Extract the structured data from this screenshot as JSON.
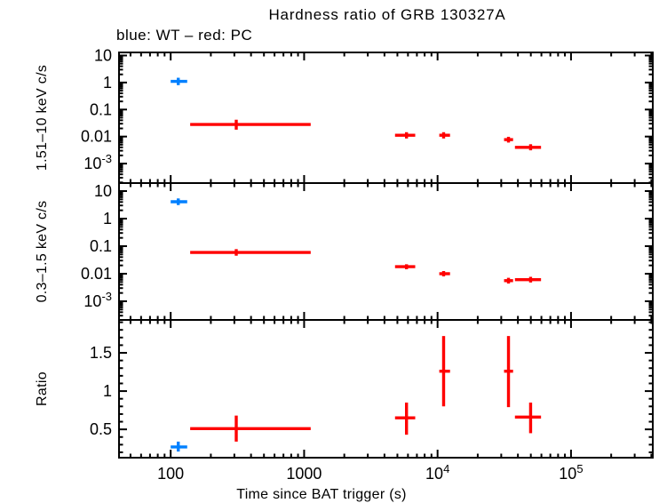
{
  "chart_data": {
    "type": "scatter",
    "title": "Hardness ratio of GRB 130327A",
    "subtitle": "blue: WT – red: PC",
    "xlabel": "Time since BAT trigger (s)",
    "legend": {
      "position": "top-left-above-plot",
      "entries": [
        "WT",
        "PC"
      ]
    },
    "x_axis": {
      "scale": "log",
      "range": [
        41,
        410000
      ],
      "major_ticks": [
        100,
        1000,
        10000,
        100000
      ],
      "tick_labels": [
        "100",
        "1000",
        "10^4",
        "10^5"
      ]
    },
    "panels": [
      {
        "key": "hard",
        "ylabel": "1.51–10 keV c/s",
        "scale": "log",
        "range": [
          0.00019,
          13
        ],
        "major_ticks": [
          10,
          1,
          0.1,
          0.01,
          0.001
        ],
        "tick_labels": [
          "10",
          "1",
          "0.1",
          "0.01",
          "10^-3"
        ]
      },
      {
        "key": "soft",
        "ylabel": "0.3–1.5 keV c/s",
        "scale": "log",
        "range": [
          0.00021,
          19.5
        ],
        "major_ticks": [
          10,
          1,
          0.1,
          0.01,
          0.001
        ],
        "tick_labels": [
          "10",
          "1",
          "0.1",
          "0.01",
          "10^-3"
        ]
      },
      {
        "key": "ratio",
        "ylabel": "Ratio",
        "scale": "linear",
        "range": [
          0.13,
          1.93
        ],
        "major_ticks": [
          0.5,
          1.0,
          1.5
        ],
        "tick_labels": [
          "0.5",
          "1",
          "1.5"
        ],
        "minor_step": 0.1
      }
    ],
    "series": [
      {
        "name": "WT",
        "color": "#0080ff",
        "points": [
          {
            "t": 114,
            "t_lo": 100,
            "t_hi": 133,
            "hard": {
              "y": 1.1,
              "y_lo": 0.8,
              "y_hi": 1.5
            },
            "soft": {
              "y": 4.1,
              "y_lo": 3.1,
              "y_hi": 5.4
            },
            "ratio": {
              "y": 0.27,
              "y_lo": 0.21,
              "y_hi": 0.34
            }
          }
        ]
      },
      {
        "name": "PC",
        "color": "#ff0000",
        "points": [
          {
            "t": 310,
            "t_lo": 140,
            "t_hi": 1120,
            "hard": {
              "y": 0.028,
              "y_lo": 0.018,
              "y_hi": 0.042
            },
            "soft": {
              "y": 0.059,
              "y_lo": 0.045,
              "y_hi": 0.078
            },
            "ratio": {
              "y": 0.51,
              "y_lo": 0.34,
              "y_hi": 0.68
            }
          },
          {
            "t": 5850,
            "t_lo": 4800,
            "t_hi": 6800,
            "hard": {
              "y": 0.0112,
              "y_lo": 0.0085,
              "y_hi": 0.0145
            },
            "soft": {
              "y": 0.018,
              "y_lo": 0.0145,
              "y_hi": 0.022
            },
            "ratio": {
              "y": 0.65,
              "y_lo": 0.43,
              "y_hi": 0.85
            }
          },
          {
            "t": 11100,
            "t_lo": 10300,
            "t_hi": 12400,
            "hard": {
              "y": 0.0112,
              "y_lo": 0.0085,
              "y_hi": 0.0145
            },
            "soft": {
              "y": 0.01,
              "y_lo": 0.008,
              "y_hi": 0.0125
            },
            "ratio": {
              "y": 1.26,
              "y_lo": 0.8,
              "y_hi": 1.72
            }
          },
          {
            "t": 34000,
            "t_lo": 31500,
            "t_hi": 36800,
            "hard": {
              "y": 0.0077,
              "y_lo": 0.006,
              "y_hi": 0.0098
            },
            "soft": {
              "y": 0.0056,
              "y_lo": 0.0044,
              "y_hi": 0.0071
            },
            "ratio": {
              "y": 1.26,
              "y_lo": 0.79,
              "y_hi": 1.72
            }
          },
          {
            "t": 49800,
            "t_lo": 38000,
            "t_hi": 59600,
            "hard": {
              "y": 0.004,
              "y_lo": 0.0031,
              "y_hi": 0.0052
            },
            "soft": {
              "y": 0.0061,
              "y_lo": 0.0048,
              "y_hi": 0.0077
            },
            "ratio": {
              "y": 0.66,
              "y_lo": 0.45,
              "y_hi": 0.85
            }
          }
        ]
      }
    ]
  }
}
